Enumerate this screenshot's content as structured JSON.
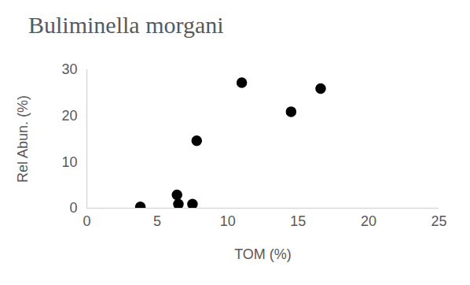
{
  "chart_data": {
    "type": "scatter",
    "title": "Buliminella morgani",
    "x_label": "TOM (%)",
    "y_label": "Rel Abun. (%)",
    "x": [
      3.8,
      6.4,
      6.5,
      7.5,
      7.8,
      11.0,
      14.5,
      16.6
    ],
    "values": [
      0.3,
      2.9,
      0.9,
      0.9,
      14.6,
      27.2,
      20.9,
      25.9
    ],
    "color": "#000000",
    "marker": "circle",
    "xlim": [
      0,
      25
    ],
    "xticks": [
      0,
      5,
      10,
      15,
      20,
      25
    ],
    "ylim": [
      0,
      30
    ],
    "yticks": [
      0,
      10,
      20,
      30
    ],
    "grid": false
  }
}
